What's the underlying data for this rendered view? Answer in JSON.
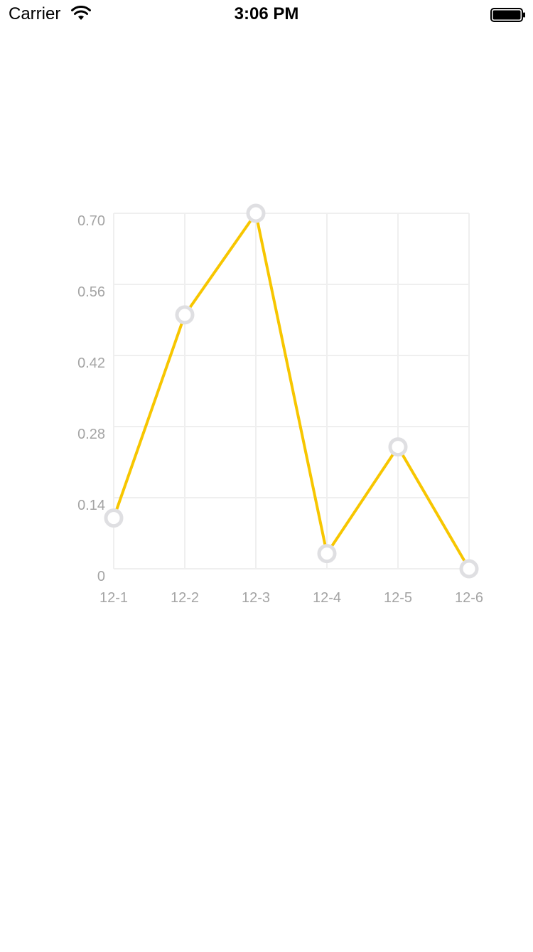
{
  "status_bar": {
    "carrier": "Carrier",
    "time": "3:06 PM",
    "wifi_icon": "wifi-icon",
    "battery_icon": "battery-icon"
  },
  "chart_data": {
    "type": "line",
    "categories": [
      "12-1",
      "12-2",
      "12-3",
      "12-4",
      "12-5",
      "12-6"
    ],
    "series": [
      {
        "values": [
          0.1,
          0.5,
          0.7,
          0.03,
          0.24,
          0.0
        ]
      }
    ],
    "title": "",
    "xlabel": "",
    "ylabel": "",
    "ylim": [
      0,
      0.7
    ],
    "yticks": [
      "0",
      "0.14",
      "0.28",
      "0.42",
      "0.56",
      "0.70"
    ],
    "grid": true,
    "legend": "none",
    "colors": {
      "line": "#F7C600",
      "marker_stroke": "#DFDFE2",
      "marker_fill": "#FFFFFF",
      "grid": "#EFEFEF",
      "tick_text": "#A4A4A4"
    }
  }
}
